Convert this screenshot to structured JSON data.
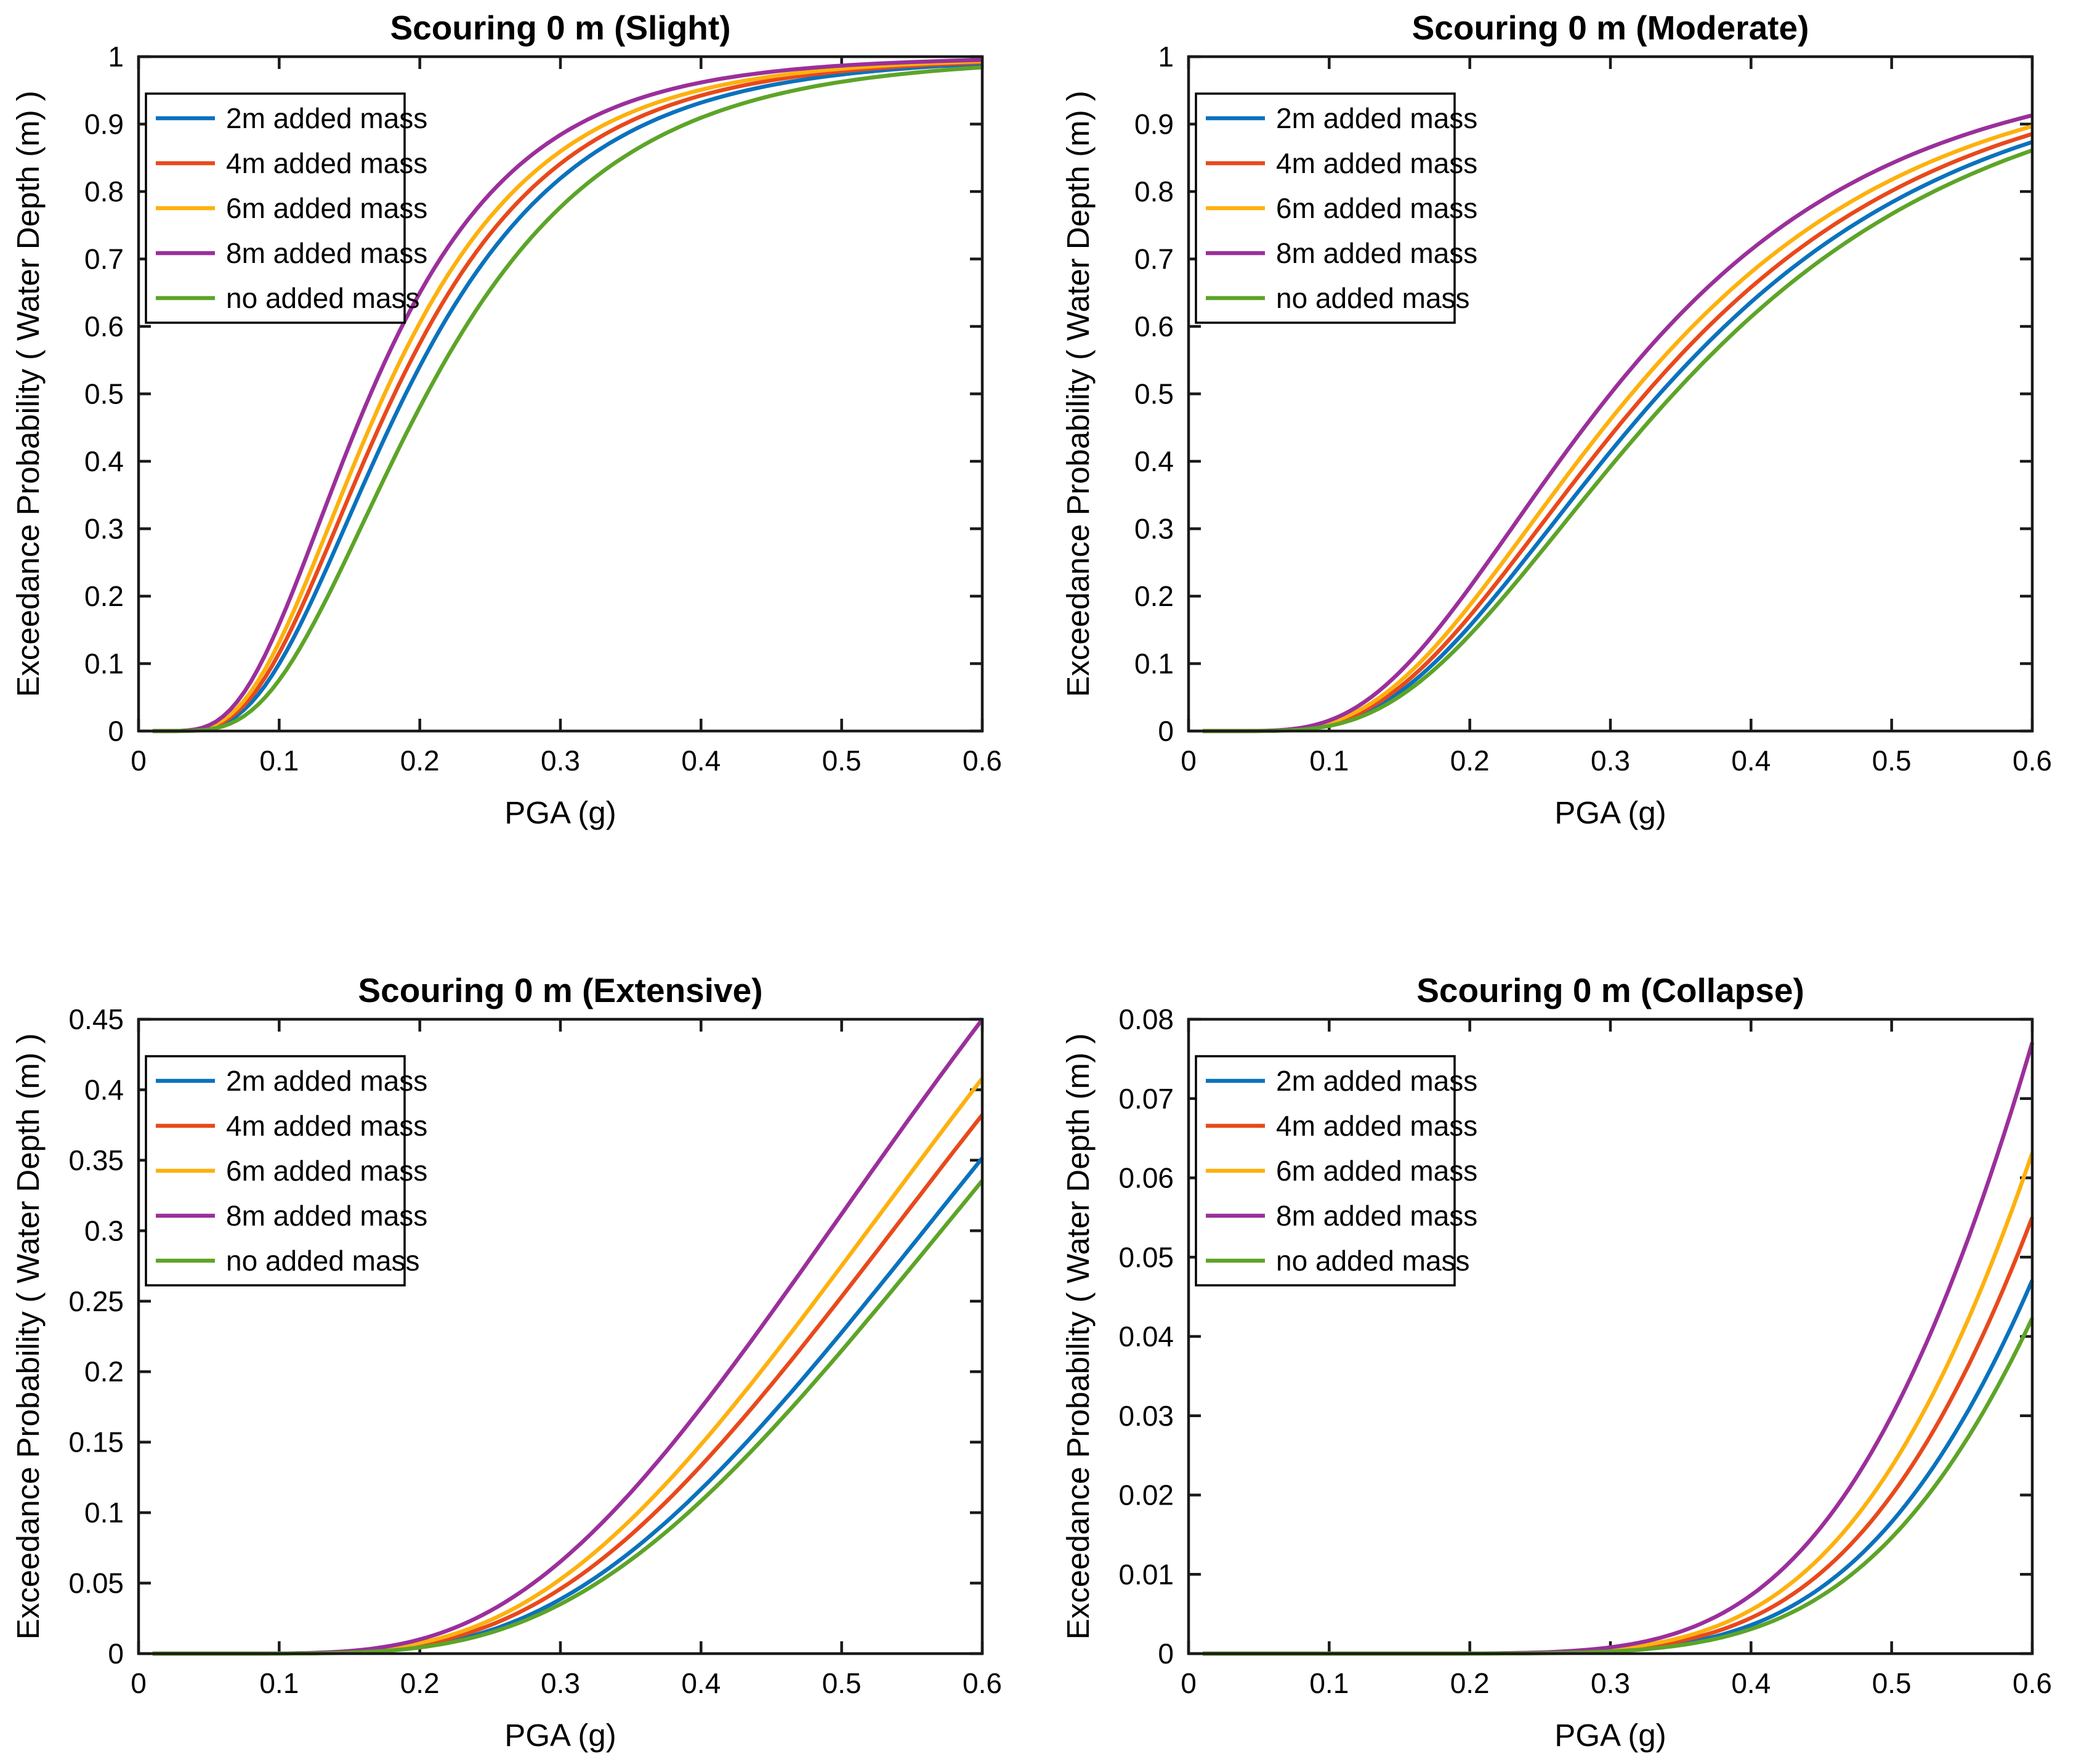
{
  "figure": {
    "xlabel": "PGA (g)",
    "ylabel": "Exceedance Probability ( Water Depth (m) )",
    "legend_entries": [
      "2m added mass",
      "4m added mass",
      "6m added mass",
      "8m added mass",
      "no added mass"
    ],
    "series_colors": {
      "2m": "#0A72BD",
      "4m": "#E8491C",
      "6m": "#FDB10E",
      "8m": "#9B2F9B",
      "none": "#5DA428"
    },
    "axis_color": "#1a1a1a",
    "background_color": "#ffffff"
  },
  "chart_data": [
    {
      "type": "line",
      "title": "Scouring 0 m (Slight)",
      "xlabel": "PGA (g)",
      "ylabel": "Exceedance Probability ( Water Depth (m) )",
      "xlim": [
        0,
        0.6
      ],
      "ylim": [
        0,
        1
      ],
      "xticks": [
        0,
        0.1,
        0.2,
        0.3,
        0.4,
        0.5,
        0.6
      ],
      "yticks": [
        0,
        0.1,
        0.2,
        0.3,
        0.4,
        0.5,
        0.6,
        0.7,
        0.8,
        0.9,
        1
      ],
      "grid": false,
      "legend_position": "upper-left",
      "x": [
        0,
        0.05,
        0.1,
        0.15,
        0.2,
        0.25,
        0.3,
        0.35,
        0.4,
        0.45,
        0.5,
        0.55,
        0.6
      ],
      "series": [
        {
          "name": "2m added mass",
          "color": "#0A72BD",
          "model": {
            "type": "lognormal_cdf",
            "median": 0.19,
            "beta": 0.5
          },
          "values": [
            0,
            0.004,
            0.1,
            0.318,
            0.541,
            0.708,
            0.819,
            0.889,
            0.932,
            0.958,
            0.973,
            0.983,
            0.989
          ]
        },
        {
          "name": "4m added mass",
          "color": "#E8491C",
          "model": {
            "type": "lognormal_cdf",
            "median": 0.182,
            "beta": 0.5
          },
          "values": [
            0,
            0.005,
            0.115,
            0.349,
            0.575,
            0.737,
            0.841,
            0.904,
            0.942,
            0.965,
            0.978,
            0.987,
            0.991
          ]
        },
        {
          "name": "6m added mass",
          "color": "#FDB10E",
          "model": {
            "type": "lognormal_cdf",
            "median": 0.175,
            "beta": 0.5
          },
          "values": [
            0,
            0.006,
            0.132,
            0.379,
            0.605,
            0.762,
            0.859,
            0.917,
            0.951,
            0.971,
            0.982,
            0.989,
            0.993
          ]
        },
        {
          "name": "8m added mass",
          "color": "#9B2F9B",
          "model": {
            "type": "lognormal_cdf",
            "median": 0.165,
            "beta": 0.5
          },
          "values": [
            0,
            0.008,
            0.158,
            0.424,
            0.65,
            0.797,
            0.884,
            0.934,
            0.962,
            0.978,
            0.987,
            0.992,
            0.995
          ]
        },
        {
          "name": "no added mass",
          "color": "#5DA428",
          "model": {
            "type": "lognormal_cdf",
            "median": 0.205,
            "beta": 0.5
          },
          "values": [
            0,
            0.002,
            0.076,
            0.266,
            0.48,
            0.654,
            0.777,
            0.858,
            0.909,
            0.942,
            0.963,
            0.976,
            0.984
          ]
        }
      ]
    },
    {
      "type": "line",
      "title": "Scouring 0 m (Moderate)",
      "xlabel": "PGA (g)",
      "ylabel": "Exceedance Probability ( Water Depth (m) )",
      "xlim": [
        0,
        0.6
      ],
      "ylim": [
        0,
        1
      ],
      "xticks": [
        0,
        0.1,
        0.2,
        0.3,
        0.4,
        0.5,
        0.6
      ],
      "yticks": [
        0,
        0.1,
        0.2,
        0.3,
        0.4,
        0.5,
        0.6,
        0.7,
        0.8,
        0.9,
        1
      ],
      "grid": false,
      "legend_position": "upper-left",
      "x": [
        0,
        0.05,
        0.1,
        0.15,
        0.2,
        0.25,
        0.3,
        0.35,
        0.4,
        0.45,
        0.5,
        0.55,
        0.6
      ],
      "series": [
        {
          "name": "2m added mass",
          "color": "#0A72BD",
          "model": {
            "type": "lognormal_cdf",
            "median": 0.335,
            "beta": 0.51
          },
          "values": [
            0,
            0,
            0.009,
            0.058,
            0.156,
            0.283,
            0.414,
            0.534,
            0.636,
            0.719,
            0.784,
            0.835,
            0.873
          ]
        },
        {
          "name": "4m added mass",
          "color": "#E8491C",
          "model": {
            "type": "lognormal_cdf",
            "median": 0.325,
            "beta": 0.51
          },
          "values": [
            0,
            0,
            0.01,
            0.065,
            0.171,
            0.303,
            0.438,
            0.558,
            0.658,
            0.738,
            0.801,
            0.849,
            0.885
          ]
        },
        {
          "name": "6m added mass",
          "color": "#FDB10E",
          "model": {
            "type": "lognormal_cdf",
            "median": 0.315,
            "beta": 0.51
          },
          "values": [
            0,
            0,
            0.012,
            0.073,
            0.187,
            0.325,
            0.462,
            0.582,
            0.68,
            0.758,
            0.818,
            0.863,
            0.897
          ]
        },
        {
          "name": "8m added mass",
          "color": "#9B2F9B",
          "model": {
            "type": "lognormal_cdf",
            "median": 0.3,
            "beta": 0.51
          },
          "values": [
            0,
            0,
            0.016,
            0.087,
            0.213,
            0.36,
            0.5,
            0.619,
            0.714,
            0.787,
            0.842,
            0.883,
            0.913
          ]
        },
        {
          "name": "no added mass",
          "color": "#5DA428",
          "model": {
            "type": "lognormal_cdf",
            "median": 0.345,
            "beta": 0.51
          },
          "values": [
            0,
            0,
            0.008,
            0.051,
            0.143,
            0.264,
            0.392,
            0.511,
            0.614,
            0.699,
            0.767,
            0.82,
            0.861
          ]
        }
      ]
    },
    {
      "type": "line",
      "title": "Scouring 0 m (Extensive)",
      "xlabel": "PGA (g)",
      "ylabel": "Exceedance Probability ( Water Depth (m) )",
      "xlim": [
        0,
        0.6
      ],
      "ylim": [
        0,
        0.45
      ],
      "xticks": [
        0,
        0.1,
        0.2,
        0.3,
        0.4,
        0.5,
        0.6
      ],
      "yticks": [
        0,
        0.05,
        0.1,
        0.15,
        0.2,
        0.25,
        0.3,
        0.35,
        0.4,
        0.45
      ],
      "grid": false,
      "legend_position": "upper-left",
      "x": [
        0,
        0.05,
        0.1,
        0.15,
        0.2,
        0.25,
        0.3,
        0.35,
        0.4,
        0.45,
        0.5,
        0.55,
        0.6
      ],
      "series": [
        {
          "name": "2m added mass",
          "color": "#0A72BD",
          "model": {
            "type": "lognormal_cdf",
            "median": 0.726,
            "beta": 0.5
          },
          "values": [
            0,
            0,
            0,
            0.001,
            0.005,
            0.017,
            0.039,
            0.072,
            0.117,
            0.169,
            0.228,
            0.289,
            0.352
          ]
        },
        {
          "name": "4m added mass",
          "color": "#E8491C",
          "model": {
            "type": "lognormal_cdf",
            "median": 0.697,
            "beta": 0.5
          },
          "values": [
            0,
            0,
            0,
            0.001,
            0.006,
            0.02,
            0.046,
            0.084,
            0.133,
            0.191,
            0.253,
            0.318,
            0.382
          ]
        },
        {
          "name": "6m added mass",
          "color": "#FDB10E",
          "model": {
            "type": "lognormal_cdf",
            "median": 0.674,
            "beta": 0.5
          },
          "values": [
            0,
            0,
            0,
            0.001,
            0.008,
            0.024,
            0.053,
            0.095,
            0.148,
            0.21,
            0.275,
            0.342,
            0.408
          ]
        },
        {
          "name": "8m added mass",
          "color": "#9B2F9B",
          "model": {
            "type": "lognormal_cdf",
            "median": 0.639,
            "beta": 0.5
          },
          "values": [
            0,
            0,
            0,
            0.002,
            0.01,
            0.03,
            0.065,
            0.114,
            0.174,
            0.242,
            0.312,
            0.382,
            0.45
          ]
        },
        {
          "name": "no added mass",
          "color": "#5DA428",
          "model": {
            "type": "lognormal_cdf",
            "median": 0.742,
            "beta": 0.5
          },
          "values": [
            0,
            0,
            0,
            0.001,
            0.004,
            0.015,
            0.035,
            0.066,
            0.108,
            0.159,
            0.215,
            0.275,
            0.335
          ]
        }
      ]
    },
    {
      "type": "line",
      "title": "Scouring 0 m (Collapse)",
      "xlabel": "PGA (g)",
      "ylabel": "Exceedance Probability ( Water Depth (m) )",
      "xlim": [
        0,
        0.6
      ],
      "ylim": [
        0,
        0.08
      ],
      "xticks": [
        0,
        0.1,
        0.2,
        0.3,
        0.4,
        0.5,
        0.6
      ],
      "yticks": [
        0,
        0.01,
        0.02,
        0.03,
        0.04,
        0.05,
        0.06,
        0.07,
        0.08
      ],
      "grid": false,
      "legend_position": "upper-left",
      "x": [
        0,
        0.05,
        0.1,
        0.15,
        0.2,
        0.25,
        0.3,
        0.35,
        0.4,
        0.45,
        0.5,
        0.55,
        0.6
      ],
      "series": [
        {
          "name": "2m added mass",
          "color": "#0A72BD",
          "model": {
            "type": "lognormal_cdf",
            "median": 1.172,
            "beta": 0.4
          },
          "values": [
            0,
            0,
            0,
            0,
            0,
            0.0001,
            0.0003,
            0.0013,
            0.0036,
            0.0084,
            0.0166,
            0.0293,
            0.0471
          ]
        },
        {
          "name": "4m added mass",
          "color": "#E8491C",
          "model": {
            "type": "lognormal_cdf",
            "median": 1.137,
            "beta": 0.4
          },
          "values": [
            0,
            0,
            0,
            0,
            0,
            0.0001,
            0.0004,
            0.0016,
            0.0045,
            0.0102,
            0.02,
            0.0347,
            0.055
          ]
        },
        {
          "name": "6m added mass",
          "color": "#FDB10E",
          "model": {
            "type": "lognormal_cdf",
            "median": 1.106,
            "beta": 0.4
          },
          "values": [
            0,
            0,
            0,
            0,
            0,
            0.0001,
            0.0006,
            0.002,
            0.0055,
            0.0123,
            0.0236,
            0.0404,
            0.0632
          ]
        },
        {
          "name": "8m added mass",
          "color": "#9B2F9B",
          "model": {
            "type": "lognormal_cdf",
            "median": 1.061,
            "beta": 0.4
          },
          "values": [
            0,
            0,
            0,
            0,
            0,
            0.0002,
            0.0008,
            0.0028,
            0.0074,
            0.016,
            0.03,
            0.0503,
            0.0771
          ]
        },
        {
          "name": "no added mass",
          "color": "#5DA428",
          "model": {
            "type": "lognormal_cdf",
            "median": 1.196,
            "beta": 0.4
          },
          "values": [
            0,
            0,
            0,
            0,
            0,
            0,
            0.0003,
            0.0011,
            0.0031,
            0.0073,
            0.0146,
            0.0261,
            0.0424
          ]
        }
      ]
    }
  ]
}
